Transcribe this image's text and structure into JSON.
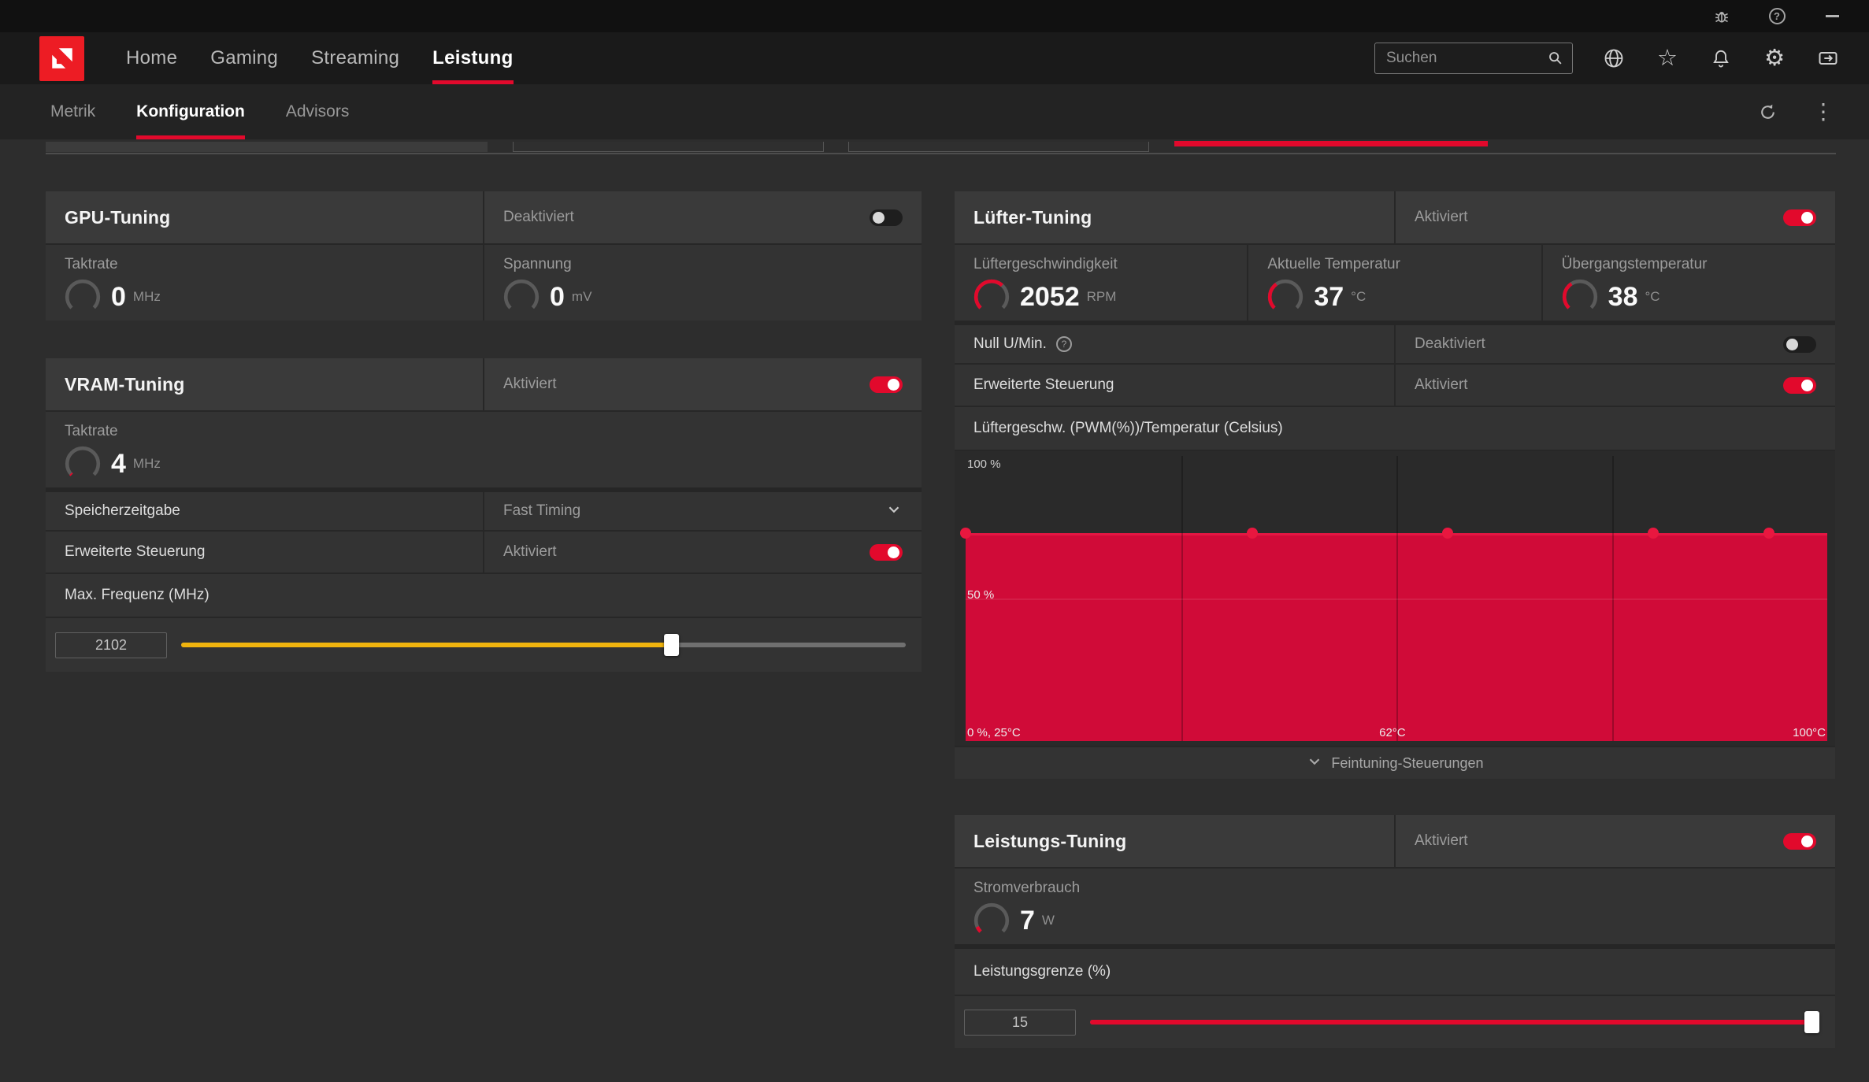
{
  "accent": "#e2092c",
  "logo_color": "#ed1c24",
  "icons": {
    "help_glyph": "?",
    "star_glyph": "☆",
    "gear_glyph": "⚙",
    "kebab_glyph": "⋮"
  },
  "titlebar": {
    "icons": [
      "bug-report",
      "help",
      "minimize"
    ]
  },
  "navbar": {
    "items": [
      {
        "label": "Home",
        "active": false
      },
      {
        "label": "Gaming",
        "active": false
      },
      {
        "label": "Streaming",
        "active": false
      },
      {
        "label": "Leistung",
        "active": true
      }
    ],
    "search_placeholder": "Suchen"
  },
  "subnav": {
    "items": [
      {
        "label": "Metrik",
        "active": false
      },
      {
        "label": "Konfiguration",
        "active": true
      },
      {
        "label": "Advisors",
        "active": false
      }
    ]
  },
  "gpu": {
    "title": "GPU-Tuning",
    "state": "Deaktiviert",
    "enabled": false,
    "metrics": [
      {
        "label": "Taktrate",
        "value": "0",
        "unit": "MHz",
        "gauge_pct": 0
      },
      {
        "label": "Spannung",
        "value": "0",
        "unit": "mV",
        "gauge_pct": 0
      }
    ]
  },
  "vram": {
    "title": "VRAM-Tuning",
    "state": "Aktiviert",
    "enabled": true,
    "metric": {
      "label": "Taktrate",
      "value": "4",
      "unit": "MHz",
      "gauge_pct": 2
    },
    "timing_label": "Speicherzeitgabe",
    "timing_value": "Fast Timing",
    "advanced_label": "Erweiterte Steuerung",
    "advanced_state": "Aktiviert",
    "advanced_enabled": true,
    "freq_label": "Max. Frequenz (MHz)",
    "slider": {
      "value": "2102",
      "fill_pct": 68,
      "color": "#f0b40e"
    }
  },
  "fan": {
    "title": "Lüfter-Tuning",
    "state": "Aktiviert",
    "enabled": true,
    "metrics": [
      {
        "label": "Lüftergeschwindigkeit",
        "value": "2052",
        "unit": "RPM",
        "gauge_pct": 66
      },
      {
        "label": "Aktuelle Temperatur",
        "value": "37",
        "unit": "°C",
        "gauge_pct": 37
      },
      {
        "label": "Übergangstemperatur",
        "value": "38",
        "unit": "°C",
        "gauge_pct": 38
      }
    ],
    "zero_rpm_label": "Null U/Min.",
    "zero_rpm_state": "Deaktiviert",
    "zero_rpm_enabled": false,
    "advanced_label": "Erweiterte Steuerung",
    "advanced_state": "Aktiviert",
    "advanced_enabled": true,
    "chart_title": "Lüftergeschw. (PWM(%))/Temperatur (Celsius)",
    "footer_label": "Feintuning-Steuerungen"
  },
  "power": {
    "title": "Leistungs-Tuning",
    "state": "Aktiviert",
    "enabled": true,
    "metric": {
      "label": "Stromverbrauch",
      "value": "7",
      "unit": "W",
      "gauge_pct": 8
    },
    "limit_label": "Leistungsgrenze (%)",
    "slider": {
      "value": "15",
      "fill_pct": 100,
      "color": "#e2092c"
    }
  },
  "chart_data": {
    "type": "area",
    "title": "Lüftergeschw. (PWM(%))/Temperatur (Celsius)",
    "xlabel": "Temperatur (Celsius)",
    "ylabel": "PWM (%)",
    "x_range_celsius": [
      25,
      100
    ],
    "y_range_pct": [
      0,
      100
    ],
    "curve_pwm_pct": 73,
    "points": [
      {
        "x_pct": 0,
        "temp_c": 25,
        "pwm": 73
      },
      {
        "x_pct": 33.3,
        "temp_c": 50,
        "pwm": 73
      },
      {
        "x_pct": 55.9,
        "temp_c": 67,
        "pwm": 73
      },
      {
        "x_pct": 79.8,
        "temp_c": 85,
        "pwm": 73
      },
      {
        "x_pct": 93.2,
        "temp_c": 95,
        "pwm": 73
      }
    ],
    "grid_x_pct": [
      25,
      50,
      75
    ],
    "grid_y_pct": [
      50
    ],
    "y_labels": [
      {
        "text": "100 %",
        "pct": 100
      },
      {
        "text": "50 %",
        "pct": 50
      }
    ],
    "x_labels": [
      {
        "text": "0 %, 25°C",
        "pos_pct": 0
      },
      {
        "text": "62°C",
        "pos_pct": 49
      },
      {
        "text": "100°C",
        "pos_pct": 100
      }
    ],
    "fill_color": "#d00b38",
    "line_color": "#e41743",
    "dot_color": "#e8173f",
    "legend": false,
    "grid": true
  }
}
